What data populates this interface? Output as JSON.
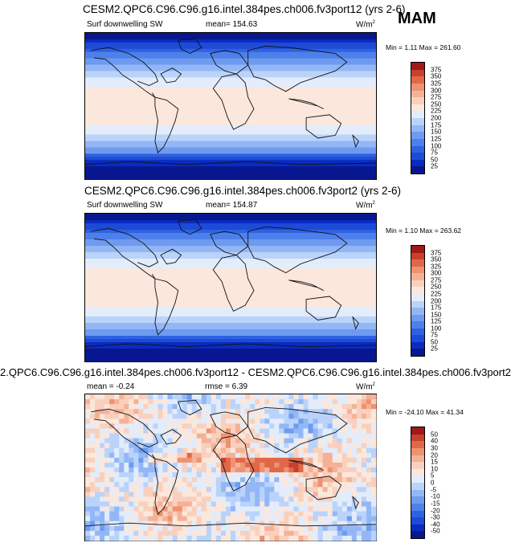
{
  "season": "MAM",
  "palette": {
    "mean": [
      "#08178f",
      "#0a2bbf",
      "#1e4ad8",
      "#2f62e0",
      "#4d80ea",
      "#6e9bf0",
      "#93b7f6",
      "#bad3fa",
      "#e2ecfb",
      "#fbe7dc",
      "#f9d0bd",
      "#f4b196",
      "#ef9270",
      "#e0684a",
      "#c9402b",
      "#a01818",
      "#7a0a0a"
    ],
    "diff": [
      "#08178f",
      "#0a2bbf",
      "#1e4ad8",
      "#2f62e0",
      "#4d80ea",
      "#6e9bf0",
      "#93b7f6",
      "#bad3fa",
      "#e2ecfb",
      "#fbe7dc",
      "#f9d0bd",
      "#f4b196",
      "#ef9270",
      "#e0684a",
      "#c9402b",
      "#a01818",
      "#7a0a0a"
    ]
  },
  "chart_data": [
    {
      "type": "heatmap",
      "title": "CESM2.QPC6.C96.C96.g16.intel.384pes.ch006.fv3port12 (yrs 2-6)",
      "variable": "Surf downwelling SW",
      "mean_label": "mean= 154.63",
      "units": "W/m",
      "units_exp": "2",
      "minmax": "Min =  1.11 Max = 261.60",
      "colorbar_levels": [
        375,
        350,
        325,
        300,
        275,
        250,
        225,
        200,
        175,
        150,
        125,
        100,
        75,
        50,
        25
      ],
      "min": 1.11,
      "max": 261.6,
      "mean": 154.63
    },
    {
      "type": "heatmap",
      "title": "CESM2.QPC6.C96.C96.g16.intel.384pes.ch006.fv3port2 (yrs 2-6)",
      "variable": "Surf downwelling SW",
      "mean_label": "mean= 154.87",
      "units": "W/m",
      "units_exp": "2",
      "minmax": "Min =  1.10 Max = 263.62",
      "colorbar_levels": [
        375,
        350,
        325,
        300,
        275,
        250,
        225,
        200,
        175,
        150,
        125,
        100,
        75,
        50,
        25
      ],
      "min": 1.1,
      "max": 263.62,
      "mean": 154.87
    },
    {
      "type": "heatmap",
      "title": "2.QPC6.C96.C96.g16.intel.384pes.ch006.fv3port12 - CESM2.QPC6.C96.C96.g16.intel.384pes.ch006.fv3port2",
      "mean_label": "mean =  -0.24",
      "rmse_label": "rmse =   6.39",
      "units": "W/m",
      "units_exp": "2",
      "minmax": "Min = -24.10 Max =  41.34",
      "colorbar_levels": [
        50,
        40,
        30,
        20,
        15,
        10,
        5,
        0,
        -5,
        -10,
        -15,
        -20,
        -30,
        -40,
        -50
      ],
      "min": -24.1,
      "max": 41.34,
      "mean": -0.24,
      "rmse": 6.39
    }
  ]
}
